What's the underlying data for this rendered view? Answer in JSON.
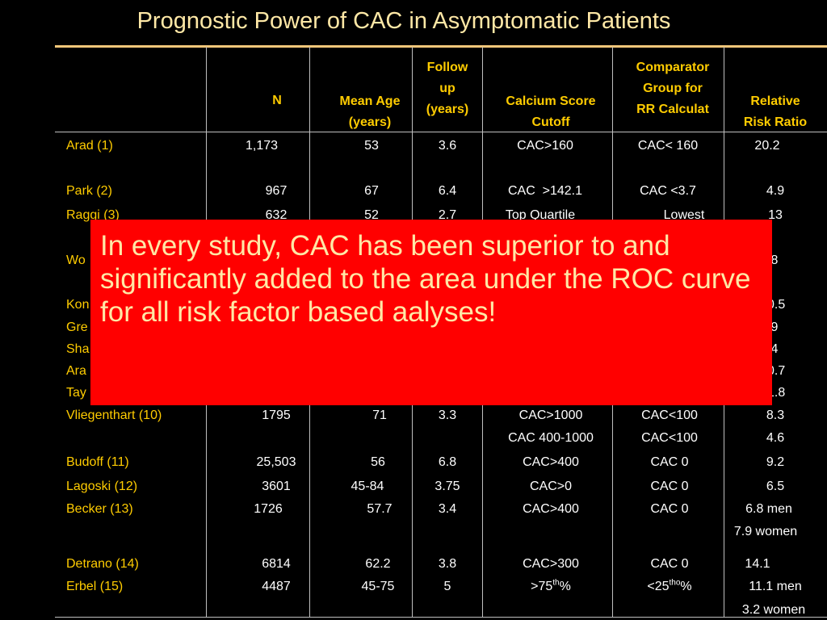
{
  "title": "Prognostic Power of CAC in Asymptomatic Patients",
  "colors": {
    "background": "#000000",
    "header_text": "#ffcc00",
    "study_name": "#ffcc00",
    "cell_text": "#ffffff",
    "overlay_bg": "#ff0000",
    "overlay_text": "#ffe8a6"
  },
  "headers": {
    "n": [
      "N"
    ],
    "age": [
      "Mean Age",
      "(years)"
    ],
    "follow": [
      "Follow",
      "up",
      "(years)"
    ],
    "cutoff": [
      "Calcium Score",
      "Cutoff"
    ],
    "comparator": [
      "Comparator",
      "Group for",
      "RR Calculat"
    ],
    "rr": [
      "Relative",
      "Risk Ratio"
    ]
  },
  "rows": [
    {
      "name": "Arad (1)",
      "n": "1,173",
      "age": "53",
      "follow": "3.6",
      "cutoff": "CAC>160",
      "comparator": "CAC< 160",
      "rr": "20.2"
    },
    {
      "name": "Park (2)",
      "n": "967",
      "age": "67",
      "follow": "6.4",
      "cutoff": "CAC  >142.1",
      "comparator": "CAC <3.7",
      "rr": "4.9"
    },
    {
      "name": "Raggi (3)",
      "n": "632",
      "age": "52",
      "follow": "2.7",
      "cutoff": "Top Quartile",
      "comparator": "Lowest",
      "rr": "13"
    },
    {
      "name": "Wo",
      "rr": ".8"
    },
    {
      "name": "Kon",
      "rr": "0.5"
    },
    {
      "name": "Gre",
      "rr": ".9"
    },
    {
      "name": "Sha",
      "rr": ".4"
    },
    {
      "name": "Ara",
      "rr": "0.7"
    },
    {
      "name": "Tay",
      "rr": "1.8"
    },
    {
      "name": "Vliegenthart (10)",
      "n": "1795",
      "age": "71",
      "follow": "3.3",
      "cutoff": "CAC>1000",
      "comparator": "CAC<100",
      "rr": "8.3"
    },
    {
      "name": "",
      "cutoff": "CAC 400-1000",
      "comparator": "CAC<100",
      "rr": "4.6"
    },
    {
      "name": "Budoff (11)",
      "n": "25,503",
      "age": "56",
      "follow": "6.8",
      "cutoff": "CAC>400",
      "comparator": "CAC 0",
      "rr": "9.2"
    },
    {
      "name": "Lagoski (12)",
      "n": "3601",
      "age": "45-84",
      "follow": "3.75",
      "cutoff": "CAC>0",
      "comparator": "CAC 0",
      "rr": "6.5"
    },
    {
      "name": "Becker (13)",
      "n": "1726",
      "age": "57.7",
      "follow": "3.4",
      "cutoff": "CAC>400",
      "comparator": "CAC 0",
      "rr": "6.8 men"
    },
    {
      "name": "",
      "rr": "7.9 women"
    },
    {
      "name": "Detrano (14)",
      "n": "6814",
      "age": "62.2",
      "follow": "3.8",
      "cutoff": "CAC>300",
      "comparator": "CAC 0",
      "rr": "14.1"
    },
    {
      "name": "Erbel (15)",
      "n": "4487",
      "age": "45-75",
      "follow": "5",
      "cutoff": ">75",
      "cutoff_sup": "th",
      "cutoff_suffix": "%",
      "comparator": "<25",
      "comparator_sup": "tho",
      "comparator_suffix": "%",
      "rr": "11.1 men"
    },
    {
      "name": "",
      "rr": "3.2 women"
    }
  ],
  "overlay": {
    "text": "In every study, CAC has been superior to and significantly added to the area under the ROC curve for all risk factor based aalyses!"
  }
}
